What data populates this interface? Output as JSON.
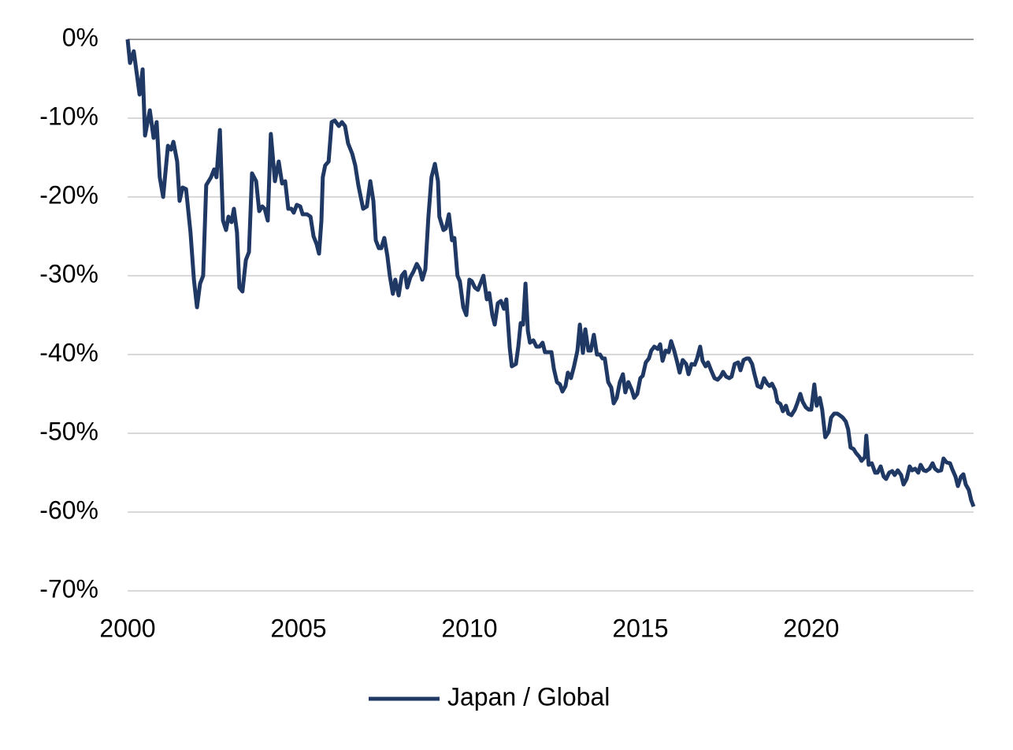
{
  "chart_data": {
    "type": "line",
    "x": [
      2000,
      2000.07,
      2000.18,
      2000.35,
      2000.44,
      2000.51,
      2000.65,
      2000.76,
      2000.85,
      2000.94,
      2001.04,
      2001.18,
      2001.27,
      2001.34,
      2001.45,
      2001.52,
      2001.61,
      2001.71,
      2001.84,
      2001.94,
      2002.03,
      2002.12,
      2002.21,
      2002.3,
      2002.44,
      2002.53,
      2002.6,
      2002.7,
      2002.79,
      2002.88,
      2002.95,
      2003.04,
      2003.11,
      2003.2,
      2003.27,
      2003.36,
      2003.46,
      2003.55,
      2003.64,
      2003.76,
      2003.85,
      2003.94,
      2004.01,
      2004.1,
      2004.19,
      2004.31,
      2004.42,
      2004.52,
      2004.61,
      2004.7,
      2004.79,
      2004.86,
      2004.95,
      2005.05,
      2005.12,
      2005.25,
      2005.35,
      2005.44,
      2005.53,
      2005.6,
      2005.67,
      2005.71,
      2005.78,
      2005.88,
      2005.97,
      2006.06,
      2006.18,
      2006.27,
      2006.36,
      2006.45,
      2006.57,
      2006.66,
      2006.75,
      2006.82,
      2006.89,
      2007.0,
      2007.1,
      2007.19,
      2007.26,
      2007.35,
      2007.42,
      2007.51,
      2007.6,
      2007.67,
      2007.76,
      2007.83,
      2007.93,
      2008.02,
      2008.11,
      2008.18,
      2008.27,
      2008.36,
      2008.46,
      2008.55,
      2008.62,
      2008.71,
      2008.8,
      2008.89,
      2008.99,
      2009.08,
      2009.12,
      2009.24,
      2009.31,
      2009.4,
      2009.49,
      2009.56,
      2009.65,
      2009.72,
      2009.82,
      2009.91,
      2010.0,
      2010.07,
      2010.16,
      2010.25,
      2010.32,
      2010.41,
      2010.51,
      2010.58,
      2010.67,
      2010.74,
      2010.83,
      2010.92,
      2011.01,
      2011.08,
      2011.18,
      2011.24,
      2011.36,
      2011.43,
      2011.5,
      2011.57,
      2011.64,
      2011.71,
      2011.77,
      2011.87,
      2011.96,
      2012.05,
      2012.14,
      2012.21,
      2012.3,
      2012.4,
      2012.47,
      2012.56,
      2012.65,
      2012.72,
      2012.81,
      2012.88,
      2012.97,
      2013.06,
      2013.16,
      2013.23,
      2013.32,
      2013.39,
      2013.48,
      2013.55,
      2013.64,
      2013.73,
      2013.82,
      2013.89,
      2013.96,
      2014.06,
      2014.15,
      2014.22,
      2014.31,
      2014.4,
      2014.49,
      2014.56,
      2014.65,
      2014.75,
      2014.82,
      2014.91,
      2015.0,
      2015.07,
      2015.16,
      2015.25,
      2015.32,
      2015.41,
      2015.51,
      2015.58,
      2015.65,
      2015.74,
      2015.83,
      2015.9,
      2015.99,
      2016.08,
      2016.15,
      2016.24,
      2016.34,
      2016.41,
      2016.5,
      2016.59,
      2016.66,
      2016.75,
      2016.82,
      2016.91,
      2016.98,
      2017.07,
      2017.17,
      2017.26,
      2017.35,
      2017.42,
      2017.51,
      2017.6,
      2017.67,
      2017.76,
      2017.86,
      2017.93,
      2018.02,
      2018.11,
      2018.18,
      2018.27,
      2018.34,
      2018.43,
      2018.53,
      2018.62,
      2018.71,
      2018.78,
      2018.85,
      2018.94,
      2019.01,
      2019.1,
      2019.17,
      2019.26,
      2019.33,
      2019.42,
      2019.52,
      2019.59,
      2019.68,
      2019.75,
      2019.84,
      2019.93,
      2020.0,
      2020.09,
      2020.16,
      2020.25,
      2020.32,
      2020.41,
      2020.51,
      2020.58,
      2020.67,
      2020.76,
      2020.83,
      2020.92,
      2021.01,
      2021.08,
      2021.15,
      2021.24,
      2021.31,
      2021.41,
      2021.47,
      2021.57,
      2021.61,
      2021.68,
      2021.77,
      2021.87,
      2021.94,
      2022.03,
      2022.12,
      2022.19,
      2022.28,
      2022.37,
      2022.44,
      2022.53,
      2022.63,
      2022.7,
      2022.79,
      2022.88,
      2022.95,
      2023.04,
      2023.13,
      2023.2,
      2023.29,
      2023.36,
      2023.46,
      2023.55,
      2023.62,
      2023.71,
      2023.8,
      2023.87,
      2023.96,
      2024.06,
      2024.12,
      2024.22,
      2024.29,
      2024.38,
      2024.45,
      2024.52,
      2024.61,
      2024.68,
      2024.75
    ],
    "series": [
      {
        "name": "Japan / Global",
        "color": "#1f3864",
        "values": [
          0,
          -3,
          -1.5,
          -7,
          -3.8,
          -12.2,
          -9,
          -12.5,
          -10.5,
          -17.5,
          -20,
          -13.5,
          -14,
          -13,
          -15.5,
          -20.5,
          -18.8,
          -19,
          -24.5,
          -30.5,
          -34,
          -31,
          -30,
          -18.5,
          -17.5,
          -16.5,
          -17.5,
          -11.5,
          -23,
          -24.2,
          -22.5,
          -23.2,
          -21.5,
          -24.5,
          -31.5,
          -32,
          -28,
          -27,
          -17,
          -18,
          -21.8,
          -21.2,
          -21.5,
          -23,
          -12,
          -18,
          -15.5,
          -18.3,
          -18,
          -21.5,
          -21.5,
          -22,
          -21,
          -21.2,
          -22.2,
          -22.2,
          -22.5,
          -25,
          -26,
          -27.2,
          -23,
          -17.5,
          -16,
          -15.5,
          -10.5,
          -10.3,
          -11,
          -10.5,
          -11,
          -13.2,
          -14.5,
          -16,
          -18.5,
          -20,
          -21.5,
          -21.2,
          -18,
          -20.5,
          -25.5,
          -26.5,
          -26.5,
          -25.2,
          -27.5,
          -30,
          -32.3,
          -30.5,
          -32.5,
          -30,
          -29.5,
          -31.5,
          -30.2,
          -29.5,
          -28.5,
          -29.2,
          -30.5,
          -29.2,
          -22.5,
          -17.5,
          -15.8,
          -18,
          -22.5,
          -24.2,
          -24,
          -22.2,
          -25.5,
          -25.2,
          -30,
          -30.7,
          -34,
          -35,
          -30.5,
          -30.7,
          -31.5,
          -31.8,
          -31,
          -30,
          -33,
          -32.2,
          -35,
          -36.2,
          -33.5,
          -33.2,
          -34.2,
          -33,
          -39.2,
          -41.5,
          -41.2,
          -39,
          -36,
          -36.2,
          -31,
          -37,
          -38.5,
          -38.2,
          -39,
          -39,
          -38.5,
          -39.7,
          -39.7,
          -39.7,
          -41.8,
          -43.5,
          -43.8,
          -44.7,
          -44,
          -42.3,
          -43,
          -41.5,
          -39.5,
          -36.2,
          -39.8,
          -36.8,
          -39.5,
          -39.5,
          -37.5,
          -40,
          -40,
          -40.5,
          -40.5,
          -43.5,
          -44.2,
          -46.2,
          -45.5,
          -43.5,
          -42.5,
          -44.8,
          -43.5,
          -44.5,
          -45.5,
          -45,
          -43,
          -42.7,
          -41,
          -40.5,
          -39.5,
          -39,
          -39.3,
          -38.7,
          -40.8,
          -39.5,
          -39.7,
          -38.3,
          -39.5,
          -41,
          -42.3,
          -40.7,
          -41.2,
          -42.5,
          -41.2,
          -41.3,
          -40.5,
          -39,
          -40.8,
          -41.5,
          -41,
          -42,
          -43,
          -43.2,
          -42.8,
          -42.2,
          -42.8,
          -43,
          -42.8,
          -41.2,
          -41,
          -42,
          -40.7,
          -40.5,
          -40.5,
          -41.2,
          -42.5,
          -44,
          -44.2,
          -43,
          -43.7,
          -44,
          -43.7,
          -44.5,
          -46,
          -46.3,
          -47.2,
          -46.5,
          -47.5,
          -47.7,
          -47,
          -46.2,
          -45,
          -46,
          -46.7,
          -47,
          -47,
          -43.8,
          -46.5,
          -45.5,
          -47,
          -50.5,
          -49.8,
          -48,
          -47.5,
          -47.5,
          -47.7,
          -48,
          -48.5,
          -49.5,
          -51.8,
          -52,
          -52.5,
          -53,
          -53.5,
          -53,
          -50.3,
          -54,
          -53.8,
          -55,
          -55,
          -54.2,
          -55.5,
          -55.8,
          -55,
          -54.8,
          -55.3,
          -54.7,
          -55.3,
          -56.5,
          -55.8,
          -54.2,
          -54.7,
          -54.5,
          -55,
          -54,
          -54.7,
          -54.8,
          -54.5,
          -53.8,
          -54.5,
          -54.8,
          -54.7,
          -53.2,
          -53.7,
          -53.8,
          -54.5,
          -55.5,
          -56.7,
          -55.5,
          -55.2,
          -56.5,
          -57.2,
          -58.5,
          -59.3
        ]
      }
    ],
    "xlim": [
      2000,
      2024.75
    ],
    "xticks": [
      2000,
      2005,
      2010,
      2015,
      2020
    ],
    "ylim": [
      -70,
      0
    ],
    "yticks": [
      {
        "value": 0,
        "label": "0%"
      },
      {
        "value": -10,
        "label": "-10%"
      },
      {
        "value": -20,
        "label": "-20%"
      },
      {
        "value": -30,
        "label": "-30%"
      },
      {
        "value": -40,
        "label": "-40%"
      },
      {
        "value": -50,
        "label": "-50%"
      },
      {
        "value": -60,
        "label": "-60%"
      },
      {
        "value": -70,
        "label": "-70%"
      }
    ],
    "grid": true,
    "legend": "bottom"
  }
}
